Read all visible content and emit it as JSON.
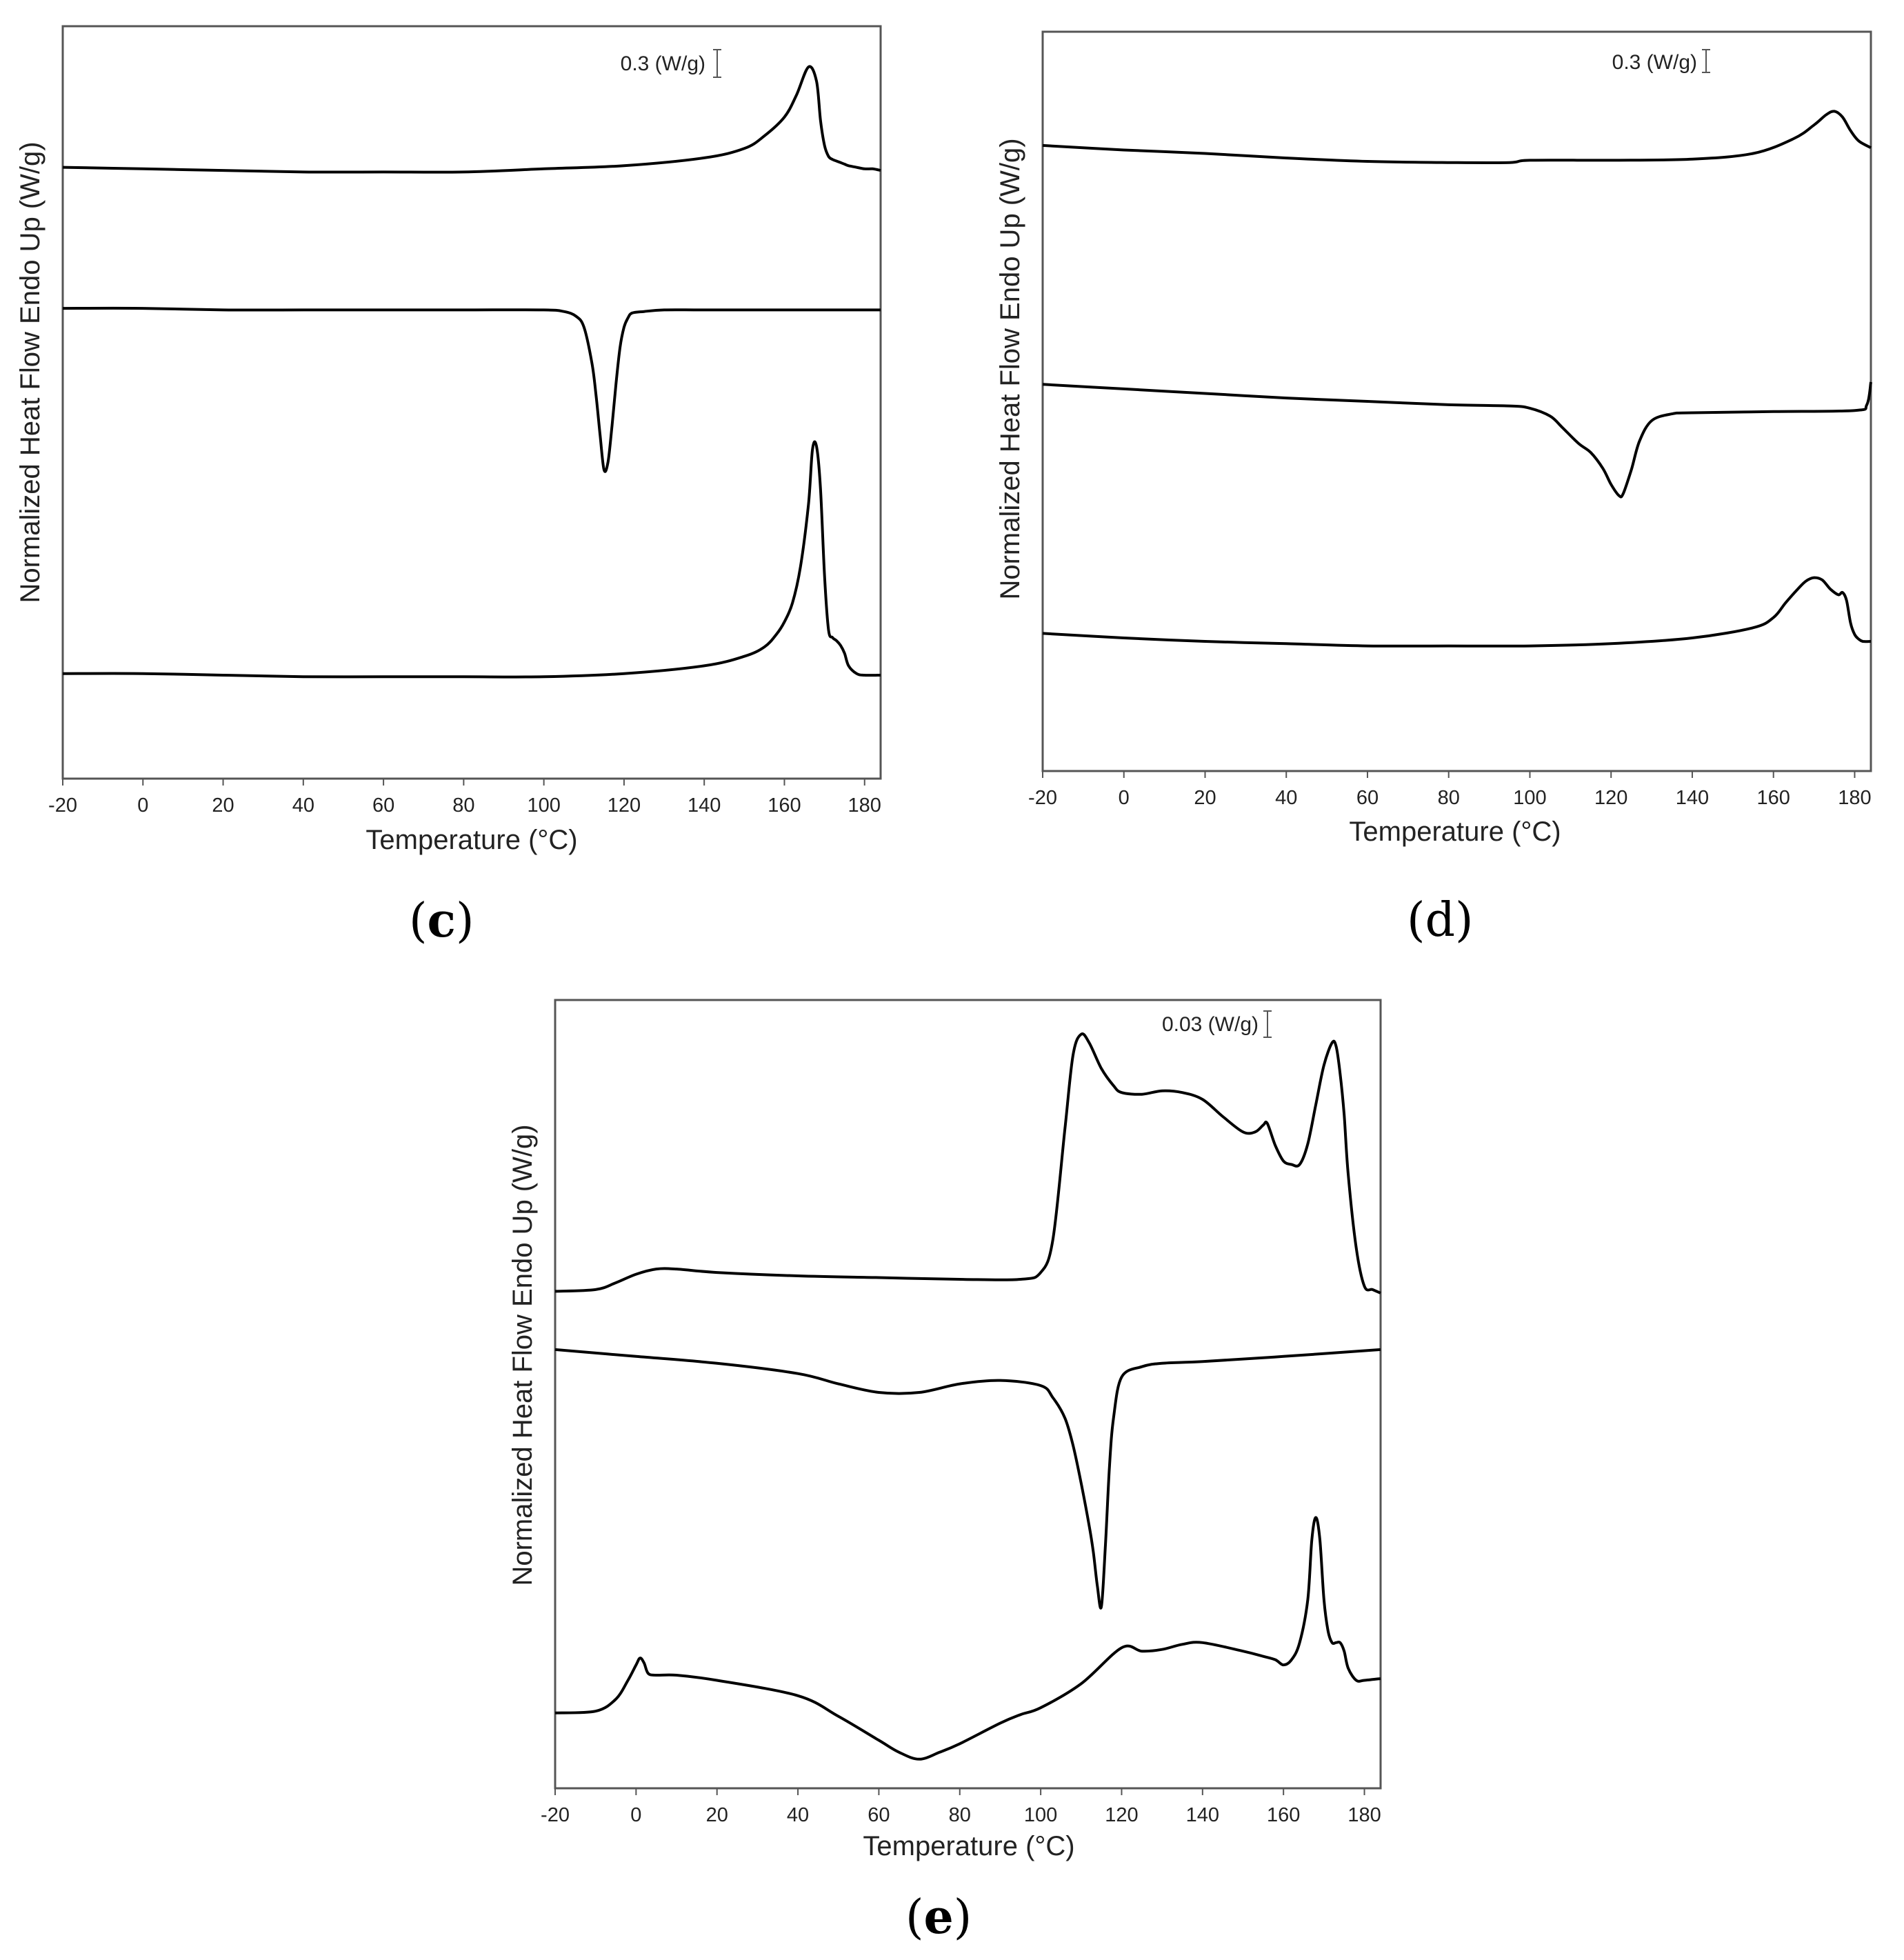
{
  "figure": {
    "panel_labels": {
      "c_open": "(",
      "c_letter": "c",
      "c_close": ")",
      "d": "(d)",
      "e_open": "(",
      "e_letter": "e",
      "e_close": ")"
    }
  },
  "colors": {
    "line": "#000000",
    "frame": "#555555",
    "text": "#222222"
  },
  "chart_data": [
    {
      "panel": "c",
      "type": "line",
      "title": "",
      "xlabel": "Temperature (°C)",
      "ylabel": "Normalized Heat Flow Endo Up (W/g)",
      "xlim": [
        -20,
        184
      ],
      "xticks": [
        -20,
        0,
        20,
        40,
        60,
        80,
        100,
        120,
        140,
        160,
        180
      ],
      "ylim": [
        -1.9,
        2.9
      ],
      "scale_bar": {
        "label": "0.3 (W/g)",
        "value": 0.3
      },
      "series": [
        {
          "name": "top heating curve",
          "x": [
            -20,
            0,
            20,
            40,
            60,
            80,
            100,
            120,
            140,
            150,
            155,
            160,
            163,
            166,
            168,
            169,
            170,
            171,
            172,
            173,
            174,
            175,
            176,
            178,
            180,
            182,
            184
          ],
          "y": [
            2.0,
            1.99,
            1.98,
            1.97,
            1.97,
            1.97,
            1.99,
            2.01,
            2.06,
            2.12,
            2.2,
            2.32,
            2.46,
            2.64,
            2.55,
            2.3,
            2.14,
            2.07,
            2.05,
            2.04,
            2.03,
            2.02,
            2.01,
            2.0,
            1.99,
            1.99,
            1.98
          ]
        },
        {
          "name": "cooling curve",
          "x": [
            -20,
            0,
            20,
            40,
            60,
            80,
            100,
            105,
            108,
            110,
            112,
            113,
            114,
            115,
            116,
            117,
            118,
            119,
            120,
            121,
            122,
            125,
            130,
            140,
            160,
            184
          ],
          "y": [
            1.1,
            1.1,
            1.09,
            1.09,
            1.09,
            1.09,
            1.09,
            1.08,
            1.05,
            0.98,
            0.75,
            0.55,
            0.3,
            0.07,
            0.12,
            0.35,
            0.62,
            0.85,
            0.98,
            1.04,
            1.07,
            1.08,
            1.09,
            1.09,
            1.09,
            1.09
          ]
        },
        {
          "name": "bottom heating curve",
          "x": [
            -20,
            0,
            20,
            40,
            60,
            80,
            100,
            120,
            140,
            150,
            155,
            158,
            160,
            162,
            164,
            166,
            167,
            168,
            169,
            170,
            171,
            172,
            173,
            174,
            175,
            176,
            178,
            180,
            184
          ],
          "y": [
            -1.23,
            -1.23,
            -1.24,
            -1.25,
            -1.25,
            -1.25,
            -1.25,
            -1.23,
            -1.18,
            -1.12,
            -1.06,
            -0.98,
            -0.9,
            -0.78,
            -0.55,
            -0.15,
            0.2,
            0.22,
            -0.05,
            -0.6,
            -0.95,
            -1.0,
            -1.02,
            -1.05,
            -1.1,
            -1.18,
            -1.23,
            -1.24,
            -1.24
          ]
        }
      ]
    },
    {
      "panel": "d",
      "type": "line",
      "title": "",
      "xlabel": "Temperature (°C)",
      "ylabel": "Normalized Heat Flow Endo Up (W/g)",
      "xlim": [
        -20,
        184
      ],
      "xticks": [
        -20,
        0,
        20,
        40,
        60,
        80,
        100,
        120,
        140,
        160,
        180
      ],
      "ylim": [
        -1.5,
        5.0
      ],
      "scale_bar": {
        "label": "0.3 (W/g)",
        "value": 0.3
      },
      "series": [
        {
          "name": "top heating curve",
          "x": [
            -20,
            0,
            20,
            40,
            60,
            80,
            95,
            100,
            120,
            140,
            155,
            165,
            170,
            173,
            175,
            177,
            179,
            181,
            184
          ],
          "y": [
            4.0,
            3.96,
            3.93,
            3.89,
            3.86,
            3.85,
            3.85,
            3.87,
            3.87,
            3.88,
            3.93,
            4.06,
            4.18,
            4.27,
            4.3,
            4.25,
            4.13,
            4.04,
            3.98
          ]
        },
        {
          "name": "cooling curve",
          "x": [
            -20,
            0,
            20,
            40,
            60,
            80,
            95,
            100,
            105,
            108,
            112,
            115,
            118,
            120,
            122,
            123,
            125,
            127,
            130,
            135,
            140,
            160,
            180,
            183,
            184
          ],
          "y": [
            1.9,
            1.86,
            1.82,
            1.78,
            1.75,
            1.72,
            1.71,
            1.69,
            1.62,
            1.52,
            1.38,
            1.3,
            1.16,
            1.02,
            0.92,
            0.94,
            1.15,
            1.4,
            1.58,
            1.64,
            1.65,
            1.66,
            1.67,
            1.72,
            1.92
          ]
        },
        {
          "name": "bottom heating curve",
          "x": [
            -20,
            0,
            20,
            40,
            60,
            80,
            100,
            120,
            140,
            155,
            160,
            163,
            166,
            168,
            170,
            172,
            174,
            176,
            177,
            178,
            179,
            180,
            181,
            182,
            184
          ],
          "y": [
            -0.29,
            -0.33,
            -0.36,
            -0.38,
            -0.4,
            -0.4,
            -0.4,
            -0.38,
            -0.33,
            -0.24,
            -0.15,
            -0.02,
            0.1,
            0.17,
            0.2,
            0.18,
            0.1,
            0.05,
            0.07,
            0.0,
            -0.2,
            -0.3,
            -0.34,
            -0.36,
            -0.36
          ]
        }
      ]
    },
    {
      "panel": "e",
      "type": "line",
      "title": "",
      "xlabel": "Temperature (°C)",
      "ylabel": "Normalized Heat Flow Endo Up (W/g)",
      "xlim": [
        -20,
        184
      ],
      "xticks": [
        -20,
        0,
        20,
        40,
        60,
        80,
        100,
        120,
        140,
        160,
        180
      ],
      "ylim": [
        -2.0,
        2.6
      ],
      "scale_bar": {
        "label": "0.03 (W/g)",
        "value": 0.03
      },
      "series": [
        {
          "name": "top heating curve",
          "x": [
            -20,
            -10,
            -5,
            0,
            5,
            10,
            20,
            40,
            60,
            80,
            95,
            100,
            103,
            106,
            108,
            110,
            112,
            115,
            118,
            120,
            125,
            130,
            135,
            140,
            145,
            150,
            153,
            155,
            156,
            158,
            160,
            162,
            164,
            166,
            168,
            170,
            172,
            173,
            174,
            175,
            176,
            178,
            180,
            182,
            184
          ],
          "y": [
            0.9,
            0.91,
            0.95,
            1.0,
            1.03,
            1.03,
            1.01,
            0.99,
            0.98,
            0.97,
            0.97,
            1.01,
            1.2,
            1.85,
            2.28,
            2.4,
            2.35,
            2.2,
            2.1,
            2.06,
            2.05,
            2.07,
            2.06,
            2.02,
            1.92,
            1.83,
            1.83,
            1.87,
            1.88,
            1.75,
            1.66,
            1.64,
            1.64,
            1.76,
            1.99,
            2.22,
            2.35,
            2.33,
            2.17,
            1.93,
            1.58,
            1.15,
            0.93,
            0.91,
            0.89
          ]
        },
        {
          "name": "cooling curve",
          "x": [
            -20,
            0,
            20,
            40,
            50,
            60,
            70,
            80,
            90,
            100,
            103,
            106,
            108,
            110,
            112,
            113,
            114,
            115,
            116,
            117,
            118,
            120,
            125,
            130,
            140,
            160,
            184
          ],
          "y": [
            0.56,
            0.52,
            0.48,
            0.42,
            0.36,
            0.31,
            0.31,
            0.36,
            0.38,
            0.35,
            0.28,
            0.16,
            0.0,
            -0.22,
            -0.47,
            -0.62,
            -0.82,
            -0.94,
            -0.58,
            -0.12,
            0.16,
            0.4,
            0.46,
            0.48,
            0.49,
            0.52,
            0.56
          ]
        },
        {
          "name": "bottom heating curve",
          "x": [
            -20,
            -10,
            -5,
            -2,
            0,
            1,
            2,
            3,
            5,
            10,
            20,
            40,
            50,
            60,
            65,
            70,
            75,
            80,
            90,
            95,
            100,
            110,
            120,
            125,
            130,
            135,
            140,
            150,
            155,
            158,
            160,
            162,
            164,
            166,
            167,
            168,
            169,
            170,
            171,
            172,
            173,
            174,
            175,
            176,
            178,
            180,
            184
          ],
          "y": [
            -1.56,
            -1.55,
            -1.48,
            -1.37,
            -1.28,
            -1.24,
            -1.27,
            -1.33,
            -1.34,
            -1.34,
            -1.37,
            -1.46,
            -1.58,
            -1.72,
            -1.79,
            -1.83,
            -1.79,
            -1.74,
            -1.62,
            -1.57,
            -1.53,
            -1.39,
            -1.18,
            -1.2,
            -1.19,
            -1.16,
            -1.15,
            -1.2,
            -1.23,
            -1.25,
            -1.28,
            -1.25,
            -1.15,
            -0.9,
            -0.55,
            -0.42,
            -0.55,
            -0.9,
            -1.08,
            -1.15,
            -1.15,
            -1.15,
            -1.2,
            -1.3,
            -1.37,
            -1.37,
            -1.36
          ]
        }
      ]
    }
  ]
}
